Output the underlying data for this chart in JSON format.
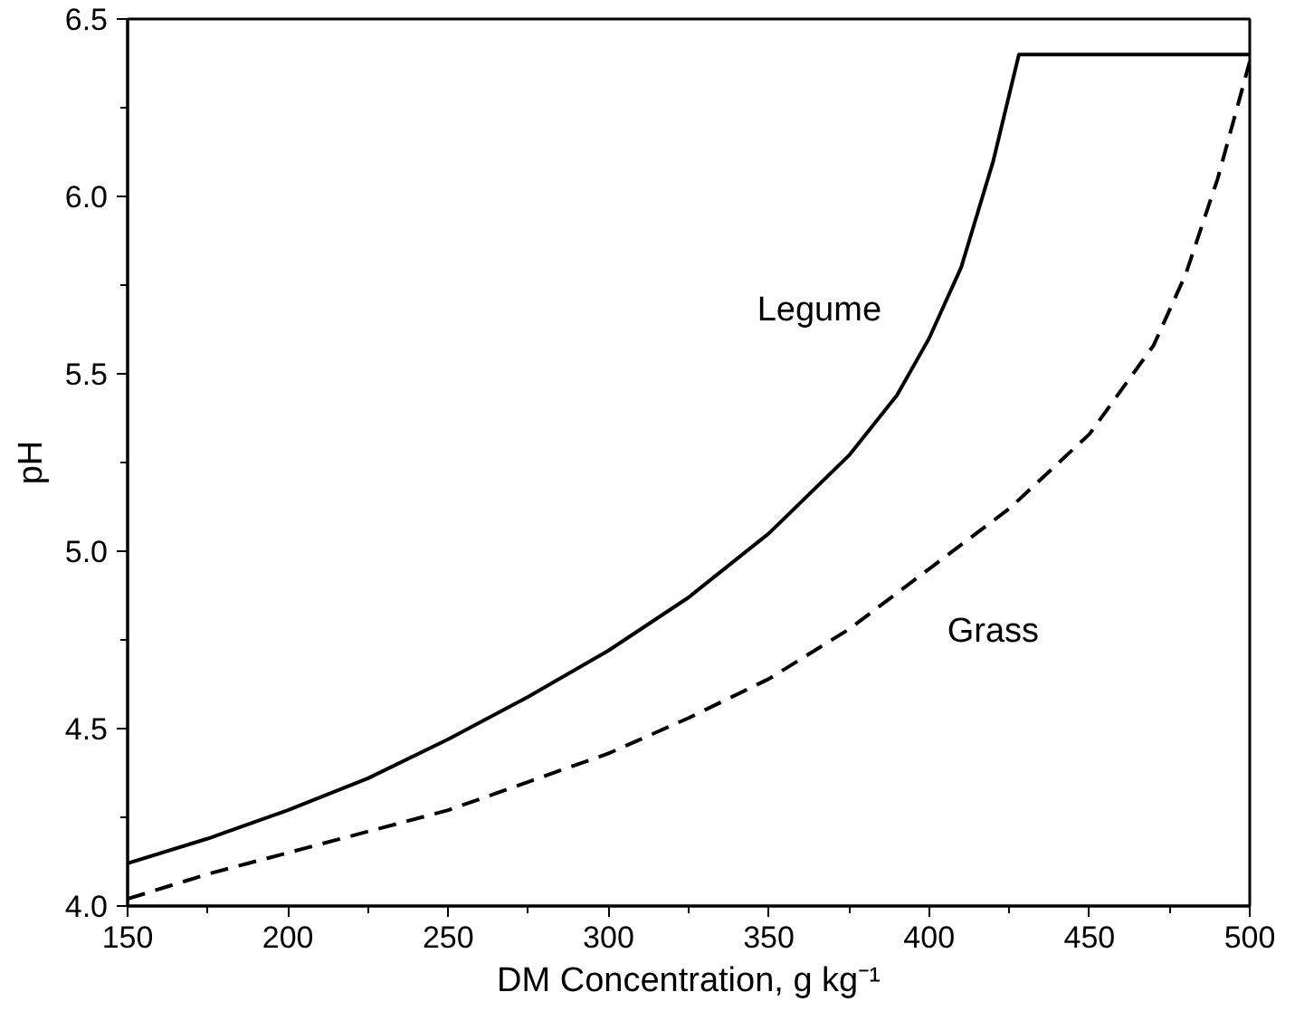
{
  "chart_data": {
    "type": "line",
    "xlabel": "DM Concentration, g kg⁻¹",
    "ylabel": "pH",
    "xlim": [
      150,
      500
    ],
    "ylim": [
      4.0,
      6.5
    ],
    "xticks": [
      150,
      200,
      250,
      300,
      350,
      400,
      450,
      500
    ],
    "yticks": [
      {
        "value": 4.0,
        "label": "4.0"
      },
      {
        "value": 4.5,
        "label": "4.5"
      },
      {
        "value": 5.0,
        "label": "5.0"
      },
      {
        "value": 5.5,
        "label": "5.5"
      },
      {
        "value": 6.0,
        "label": "6.0"
      },
      {
        "value": 6.5,
        "label": "6.5"
      }
    ],
    "grid": false,
    "legend": false,
    "marker": "none",
    "series": [
      {
        "name": "Legume",
        "color": "#000000",
        "line_style": "solid",
        "x": [
          150,
          175,
          200,
          225,
          250,
          275,
          300,
          325,
          350,
          375,
          390,
          400,
          410,
          420,
          428,
          500
        ],
        "values": [
          4.12,
          4.19,
          4.27,
          4.36,
          4.47,
          4.59,
          4.72,
          4.87,
          5.05,
          5.27,
          5.44,
          5.6,
          5.8,
          6.1,
          6.4,
          6.4
        ]
      },
      {
        "name": "Grass",
        "color": "#000000",
        "line_style": "dashed",
        "x": [
          150,
          175,
          200,
          225,
          250,
          275,
          300,
          325,
          350,
          375,
          400,
          425,
          450,
          470,
          480,
          490,
          500
        ],
        "values": [
          4.02,
          4.09,
          4.15,
          4.21,
          4.27,
          4.35,
          4.43,
          4.53,
          4.64,
          4.78,
          4.95,
          5.12,
          5.33,
          5.58,
          5.78,
          6.05,
          6.38
        ]
      }
    ]
  }
}
